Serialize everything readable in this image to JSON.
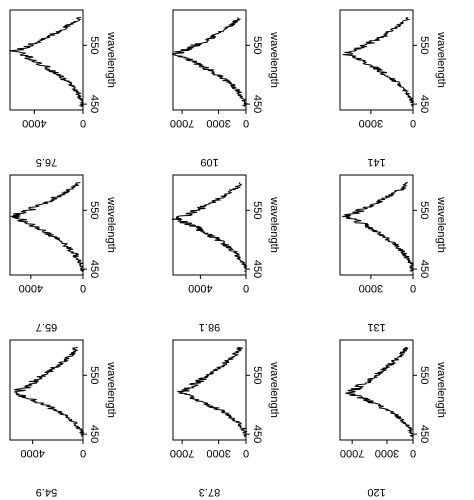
{
  "figure": {
    "orientation": "rotated-90-clockwise",
    "layout": "3x3 grid"
  },
  "chart_data": [
    {
      "type": "line",
      "title": "76.5",
      "xlabel": "wavelength",
      "ylabel": "",
      "xlim": [
        440,
        610
      ],
      "ylim": [
        0,
        6000
      ],
      "xticks": [
        450,
        550
      ],
      "yticks": [
        0,
        4000
      ],
      "peak_x": 540,
      "peak_y": 5600,
      "base_y": 0,
      "tail_y": 300
    },
    {
      "type": "line",
      "title": "109",
      "xlabel": "wavelength",
      "ylabel": "",
      "xlim": [
        440,
        610
      ],
      "ylim": [
        0,
        8000
      ],
      "xticks": [
        450,
        550
      ],
      "yticks": [
        0,
        3000,
        7000
      ],
      "peak_x": 535,
      "peak_y": 7700,
      "base_y": 0,
      "tail_y": 600
    },
    {
      "type": "line",
      "title": "141",
      "xlabel": "wavelength",
      "ylabel": "",
      "xlim": [
        440,
        610
      ],
      "ylim": [
        0,
        5200
      ],
      "xticks": [
        450,
        550
      ],
      "yticks": [
        0,
        3000
      ],
      "peak_x": 535,
      "peak_y": 4700,
      "base_y": 0,
      "tail_y": 300
    },
    {
      "type": "line",
      "title": "65.7",
      "xlabel": "wavelength",
      "ylabel": "",
      "xlim": [
        440,
        610
      ],
      "ylim": [
        0,
        5600
      ],
      "xticks": [
        450,
        550
      ],
      "yticks": [
        0,
        4000
      ],
      "peak_x": 540,
      "peak_y": 5300,
      "base_y": 0,
      "tail_y": 300
    },
    {
      "type": "line",
      "title": "98.1",
      "xlabel": "wavelength",
      "ylabel": "",
      "xlim": [
        440,
        610
      ],
      "ylim": [
        0,
        6400
      ],
      "xticks": [
        450,
        550
      ],
      "yticks": [
        0,
        4000
      ],
      "peak_x": 535,
      "peak_y": 6100,
      "base_y": 0,
      "tail_y": 300
    },
    {
      "type": "line",
      "title": "131",
      "xlabel": "wavelength",
      "ylabel": "",
      "xlim": [
        440,
        610
      ],
      "ylim": [
        0,
        5200
      ],
      "xticks": [
        450,
        550
      ],
      "yticks": [
        0,
        3000
      ],
      "peak_x": 540,
      "peak_y": 4700,
      "base_y": 0,
      "tail_y": 300
    },
    {
      "type": "line",
      "title": "54.9",
      "xlabel": "wavelength",
      "ylabel": "",
      "xlim": [
        440,
        610
      ],
      "ylim": [
        0,
        5800
      ],
      "xticks": [
        450,
        550
      ],
      "yticks": [
        0,
        4000
      ],
      "peak_x": 520,
      "peak_y": 5400,
      "base_y": 0,
      "tail_y": 500
    },
    {
      "type": "line",
      "title": "87.3",
      "xlabel": "wavelength",
      "ylabel": "",
      "xlim": [
        440,
        610
      ],
      "ylim": [
        0,
        8000
      ],
      "xticks": [
        450,
        550
      ],
      "yticks": [
        0,
        3000,
        7000
      ],
      "peak_x": 520,
      "peak_y": 7200,
      "base_y": 0,
      "tail_y": 600
    },
    {
      "type": "line",
      "title": "120",
      "xlabel": "wavelength",
      "ylabel": "",
      "xlim": [
        440,
        610
      ],
      "ylim": [
        0,
        8400
      ],
      "xticks": [
        450,
        550
      ],
      "yticks": [
        0,
        3000,
        7000
      ],
      "peak_x": 520,
      "peak_y": 7300,
      "base_y": 0,
      "tail_y": 800
    }
  ]
}
